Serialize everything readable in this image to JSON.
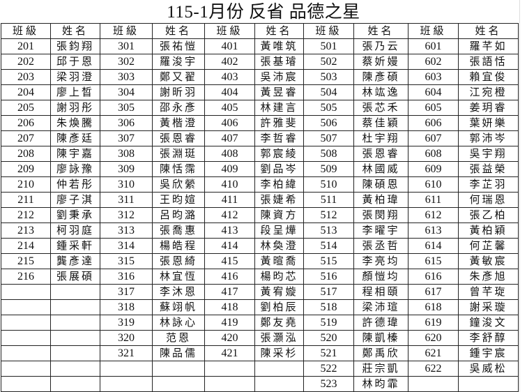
{
  "title": "115-1月份 反省 品德之星",
  "headers": {
    "class": "班級",
    "name": "姓名"
  },
  "groups": [
    {
      "students": [
        {
          "class": "201",
          "name": "張鈞翔"
        },
        {
          "class": "202",
          "name": "邱于恩"
        },
        {
          "class": "203",
          "name": "梁羽澄"
        },
        {
          "class": "204",
          "name": "廖上晳"
        },
        {
          "class": "205",
          "name": "謝羽彤"
        },
        {
          "class": "206",
          "name": "朱煥騰"
        },
        {
          "class": "207",
          "name": "陳彥廷"
        },
        {
          "class": "208",
          "name": "陳宇嘉"
        },
        {
          "class": "209",
          "name": "廖詠豫"
        },
        {
          "class": "210",
          "name": "仲若彤"
        },
        {
          "class": "211",
          "name": "廖子淇"
        },
        {
          "class": "212",
          "name": "劉秉承"
        },
        {
          "class": "213",
          "name": "柯羽庭"
        },
        {
          "class": "214",
          "name": "鍾采軒"
        },
        {
          "class": "215",
          "name": "龔彥達"
        },
        {
          "class": "216",
          "name": "張展碩"
        }
      ]
    },
    {
      "students": [
        {
          "class": "301",
          "name": "張祐愷"
        },
        {
          "class": "302",
          "name": "羅浚宇"
        },
        {
          "class": "303",
          "name": "鄭又翟"
        },
        {
          "class": "304",
          "name": "謝昕羽"
        },
        {
          "class": "305",
          "name": "邵永彥"
        },
        {
          "class": "306",
          "name": "黃楷澄"
        },
        {
          "class": "307",
          "name": "張恩睿"
        },
        {
          "class": "308",
          "name": "張淵珽"
        },
        {
          "class": "309",
          "name": "陳恬霈"
        },
        {
          "class": "310",
          "name": "吳欣縈"
        },
        {
          "class": "311",
          "name": "王昀媗"
        },
        {
          "class": "312",
          "name": "呂昀潞"
        },
        {
          "class": "313",
          "name": "張喬惠"
        },
        {
          "class": "314",
          "name": "楊皓程"
        },
        {
          "class": "315",
          "name": "張恩綺"
        },
        {
          "class": "316",
          "name": "林宜恆"
        },
        {
          "class": "317",
          "name": "李沐恩"
        },
        {
          "class": "318",
          "name": "蘇翊帆"
        },
        {
          "class": "319",
          "name": "林詠心"
        },
        {
          "class": "320",
          "name": "范恩"
        },
        {
          "class": "321",
          "name": "陳品儒"
        }
      ]
    },
    {
      "students": [
        {
          "class": "401",
          "name": "黃唯筑"
        },
        {
          "class": "402",
          "name": "張基璿"
        },
        {
          "class": "403",
          "name": "吳沛宸"
        },
        {
          "class": "404",
          "name": "黃昱睿"
        },
        {
          "class": "405",
          "name": "林建言"
        },
        {
          "class": "406",
          "name": "許雅斐"
        },
        {
          "class": "407",
          "name": "李哲睿"
        },
        {
          "class": "408",
          "name": "郭宸綾"
        },
        {
          "class": "409",
          "name": "劉品岑"
        },
        {
          "class": "410",
          "name": "李柏緯"
        },
        {
          "class": "411",
          "name": "張婕希"
        },
        {
          "class": "412",
          "name": "陳資方"
        },
        {
          "class": "413",
          "name": "段呈燁"
        },
        {
          "class": "414",
          "name": "林奐澄"
        },
        {
          "class": "415",
          "name": "黃暄喬"
        },
        {
          "class": "416",
          "name": "楊昀芯"
        },
        {
          "class": "417",
          "name": "黃宥嫙"
        },
        {
          "class": "418",
          "name": "劉柏辰"
        },
        {
          "class": "419",
          "name": "鄭友堯"
        },
        {
          "class": "420",
          "name": "張灝泓"
        },
        {
          "class": "421",
          "name": "陳采杉"
        }
      ]
    },
    {
      "students": [
        {
          "class": "501",
          "name": "張乃云"
        },
        {
          "class": "502",
          "name": "蔡妡嫚"
        },
        {
          "class": "503",
          "name": "陳彥碩"
        },
        {
          "class": "504",
          "name": "林竑逸"
        },
        {
          "class": "505",
          "name": "張芯禾"
        },
        {
          "class": "506",
          "name": "蔡佳穎"
        },
        {
          "class": "507",
          "name": "杜宇翔"
        },
        {
          "class": "508",
          "name": "張恩睿"
        },
        {
          "class": "509",
          "name": "林國威"
        },
        {
          "class": "510",
          "name": "陳碩恩"
        },
        {
          "class": "511",
          "name": "黃柏瑋"
        },
        {
          "class": "512",
          "name": "張閔翔"
        },
        {
          "class": "513",
          "name": "李曜宇"
        },
        {
          "class": "514",
          "name": "張丞哲"
        },
        {
          "class": "515",
          "name": "李亮均"
        },
        {
          "class": "516",
          "name": "顏愷均"
        },
        {
          "class": "517",
          "name": "程相頤"
        },
        {
          "class": "518",
          "name": "梁沛瑄"
        },
        {
          "class": "519",
          "name": "許德瑋"
        },
        {
          "class": "520",
          "name": "陳凱榛"
        },
        {
          "class": "521",
          "name": "鄭禹欣"
        },
        {
          "class": "522",
          "name": "莊宗凱"
        },
        {
          "class": "523",
          "name": "林昀霏"
        }
      ]
    },
    {
      "students": [
        {
          "class": "601",
          "name": "羅芊如"
        },
        {
          "class": "602",
          "name": "張語恬"
        },
        {
          "class": "603",
          "name": "賴宜俊"
        },
        {
          "class": "604",
          "name": "江宛橙"
        },
        {
          "class": "605",
          "name": "姜玥睿"
        },
        {
          "class": "606",
          "name": "葉妍樂"
        },
        {
          "class": "607",
          "name": "郭沛岑"
        },
        {
          "class": "608",
          "name": "吳宇翔"
        },
        {
          "class": "609",
          "name": "張益榮"
        },
        {
          "class": "610",
          "name": "李芷羽"
        },
        {
          "class": "611",
          "name": "何瑞恩"
        },
        {
          "class": "612",
          "name": "張乙柏"
        },
        {
          "class": "613",
          "name": "黃柏穎"
        },
        {
          "class": "614",
          "name": "何芷馨"
        },
        {
          "class": "615",
          "name": "黃敏宸"
        },
        {
          "class": "616",
          "name": "朱彥旭"
        },
        {
          "class": "617",
          "name": "曾芊琁"
        },
        {
          "class": "618",
          "name": "謝采璇"
        },
        {
          "class": "619",
          "name": "鐘浚文"
        },
        {
          "class": "620",
          "name": "李舒醇"
        },
        {
          "class": "621",
          "name": "鍾宇宸"
        },
        {
          "class": "622",
          "name": "吳威松"
        }
      ]
    }
  ]
}
